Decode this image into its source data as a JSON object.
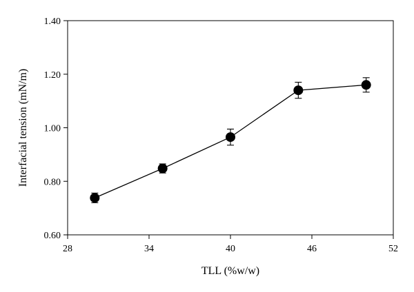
{
  "chart_data": {
    "type": "line",
    "xlabel": "TLL (%w/w)",
    "ylabel": "Interfacial tension (mN/m)",
    "xlim": [
      28,
      52
    ],
    "ylim": [
      0.6,
      1.4
    ],
    "x_ticks": [
      "28",
      "34",
      "40",
      "46",
      "52"
    ],
    "y_ticks": [
      "0.60",
      "0.80",
      "1.00",
      "1.20",
      "1.40"
    ],
    "grid": false,
    "series": [
      {
        "x": [
          30,
          35,
          40,
          45,
          50
        ],
        "y": [
          0.738,
          0.848,
          0.965,
          1.14,
          1.16
        ],
        "error": [
          0.018,
          0.017,
          0.03,
          0.03,
          0.027
        ],
        "marker": "filled-circle",
        "color": "#000000"
      }
    ]
  }
}
